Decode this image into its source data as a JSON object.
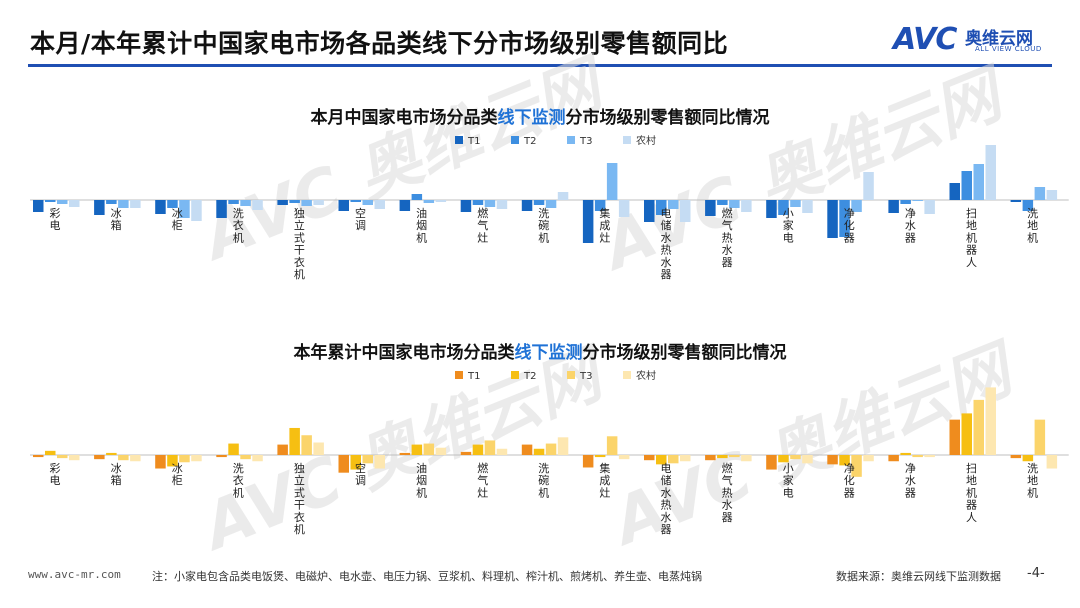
{
  "header": {
    "title": "本月/本年累计中国家电市场各品类线下分市场级别零售额同比",
    "logo_brand": "AVC",
    "logo_cn": "奥维云网",
    "logo_en": "ALL VIEW CLOUD"
  },
  "colors": {
    "brand": "#1f4fb3",
    "chart1": [
      "#1565c0",
      "#3d8ee0",
      "#7ab8f2",
      "#c5dcf3"
    ],
    "chart2": [
      "#ef8c1e",
      "#f6bf12",
      "#fbd46a",
      "#fde7b0"
    ]
  },
  "chart_data": [
    {
      "type": "bar",
      "title_parts": [
        "本月中国家电市场分品类",
        "线下监测",
        "分市场级别零售额同比情况"
      ],
      "legend": [
        "T1",
        "T2",
        "T3",
        "农村"
      ],
      "categories": [
        "彩电",
        "冰箱",
        "冰柜",
        "洗衣机",
        "独立式干衣机",
        "空调",
        "油烟机",
        "燃气灶",
        "洗碗机",
        "集成灶",
        "电储水热水器",
        "燃气热水器",
        "小家电",
        "净化器",
        "净水器",
        "扫地机器人",
        "洗地机"
      ],
      "series": [
        {
          "name": "T1",
          "values": [
            -12,
            -15,
            -14,
            -18,
            -5,
            -11,
            -11,
            -12,
            -11,
            -43,
            -22,
            -16,
            -18,
            -38,
            -13,
            17,
            -2
          ]
        },
        {
          "name": "T2",
          "values": [
            -2,
            -4,
            -8,
            -4,
            -3,
            -2,
            6,
            -5,
            -5,
            -11,
            -15,
            -5,
            -15,
            -37,
            -4,
            29,
            -11
          ]
        },
        {
          "name": "T3",
          "values": [
            -4,
            -8,
            -18,
            -6,
            -6,
            -5,
            -3,
            -7,
            -8,
            37,
            -9,
            -8,
            -7,
            -12,
            -1,
            36,
            13
          ]
        },
        {
          "name": "农村",
          "values": [
            -7,
            -8,
            -21,
            -10,
            -5,
            -9,
            -2,
            -9,
            8,
            -17,
            -22,
            -12,
            -13,
            28,
            -14,
            55,
            10
          ]
        }
      ]
    },
    {
      "type": "bar",
      "title_parts": [
        "本年累计中国家电市场分品类",
        "线下监测",
        "分市场级别零售额同比情况"
      ],
      "legend": [
        "T1",
        "T2",
        "T3",
        "农村"
      ],
      "categories": [
        "彩电",
        "冰箱",
        "冰柜",
        "洗衣机",
        "独立式干衣机",
        "空调",
        "油烟机",
        "燃气灶",
        "洗碗机",
        "集成灶",
        "电储水热水器",
        "燃气热水器",
        "小家电",
        "净化器",
        "净水器",
        "扫地机器人",
        "洗地机"
      ],
      "series": [
        {
          "name": "T1",
          "values": [
            -2,
            -4,
            -13,
            -2,
            10,
            -17,
            2,
            3,
            10,
            -12,
            -5,
            -5,
            -14,
            -9,
            -6,
            34,
            -3
          ]
        },
        {
          "name": "T2",
          "values": [
            4,
            2,
            -11,
            11,
            26,
            -14,
            10,
            10,
            6,
            -2,
            -9,
            -3,
            -7,
            -10,
            2,
            40,
            -6
          ]
        },
        {
          "name": "T3",
          "values": [
            -3,
            -5,
            -7,
            -4,
            19,
            -8,
            11,
            14,
            11,
            18,
            -8,
            -2,
            -4,
            -21,
            -2,
            53,
            34
          ]
        },
        {
          "name": "农村",
          "values": [
            -5,
            -6,
            -6,
            -6,
            12,
            -13,
            7,
            6,
            17,
            -4,
            -6,
            -6,
            -8,
            -6,
            -2,
            65,
            -13
          ]
        }
      ]
    }
  ],
  "footer": {
    "site": "www.avc-mr.com",
    "note": "注：小家电包含品类电饭煲、电磁炉、电水壶、电压力锅、豆浆机、料理机、榨汁机、煎烤机、养生壶、电蒸炖锅",
    "source": "数据来源：奥维云网线下监测数据",
    "page": "-4-"
  }
}
